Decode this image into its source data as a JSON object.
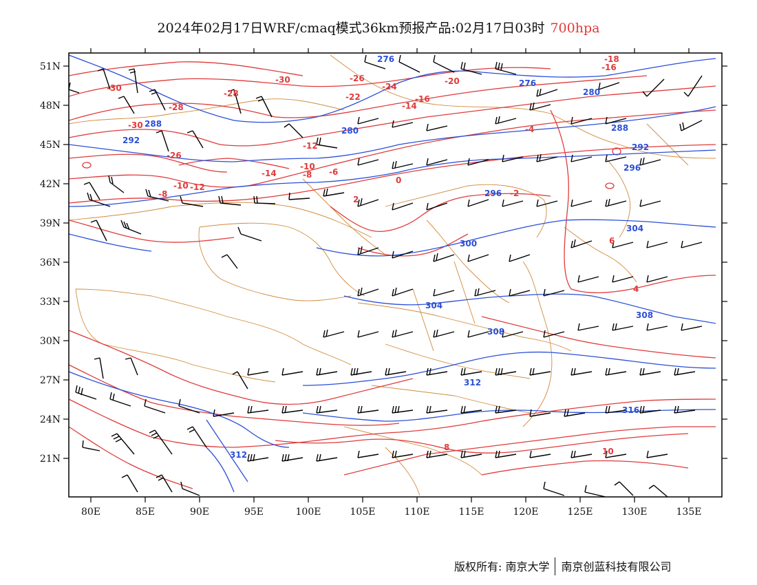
{
  "title": {
    "main": "2024年02月17日WRF/cmaq模式36km预报产品:02月17日03时",
    "level": "700hpa"
  },
  "axes": {
    "lat_labels": [
      "51N",
      "48N",
      "45N",
      "42N",
      "39N",
      "36N",
      "33N",
      "30N",
      "27N",
      "24N",
      "21N"
    ],
    "lon_labels": [
      "80E",
      "85E",
      "90E",
      "95E",
      "100E",
      "105E",
      "110E",
      "115E",
      "120E",
      "125E",
      "130E",
      "135E"
    ]
  },
  "colors": {
    "temperature_contour": "#e03a3a",
    "height_contour": "#2a4fd8",
    "boundary": "#d08a3a",
    "wind_barb": "#000000"
  },
  "temperature_labels": [
    "-30",
    "-30",
    "-28",
    "-28",
    "-30",
    "-26",
    "-26",
    "-24",
    "-22",
    "-20",
    "-16",
    "-14",
    "-12",
    "-10",
    "-8",
    "-6",
    "-4",
    "-2",
    "0",
    "2",
    "4",
    "6",
    "8",
    "10",
    "-18",
    "-16",
    "-14",
    "-12",
    "-10",
    "-8"
  ],
  "height_labels": [
    "276",
    "276",
    "280",
    "280",
    "288",
    "288",
    "292",
    "292",
    "296",
    "296",
    "300",
    "304",
    "304",
    "308",
    "308",
    "312",
    "312",
    "316"
  ],
  "footer": {
    "left": "版权所有: 南京大学",
    "right": "南京创蓝科技有限公司"
  }
}
